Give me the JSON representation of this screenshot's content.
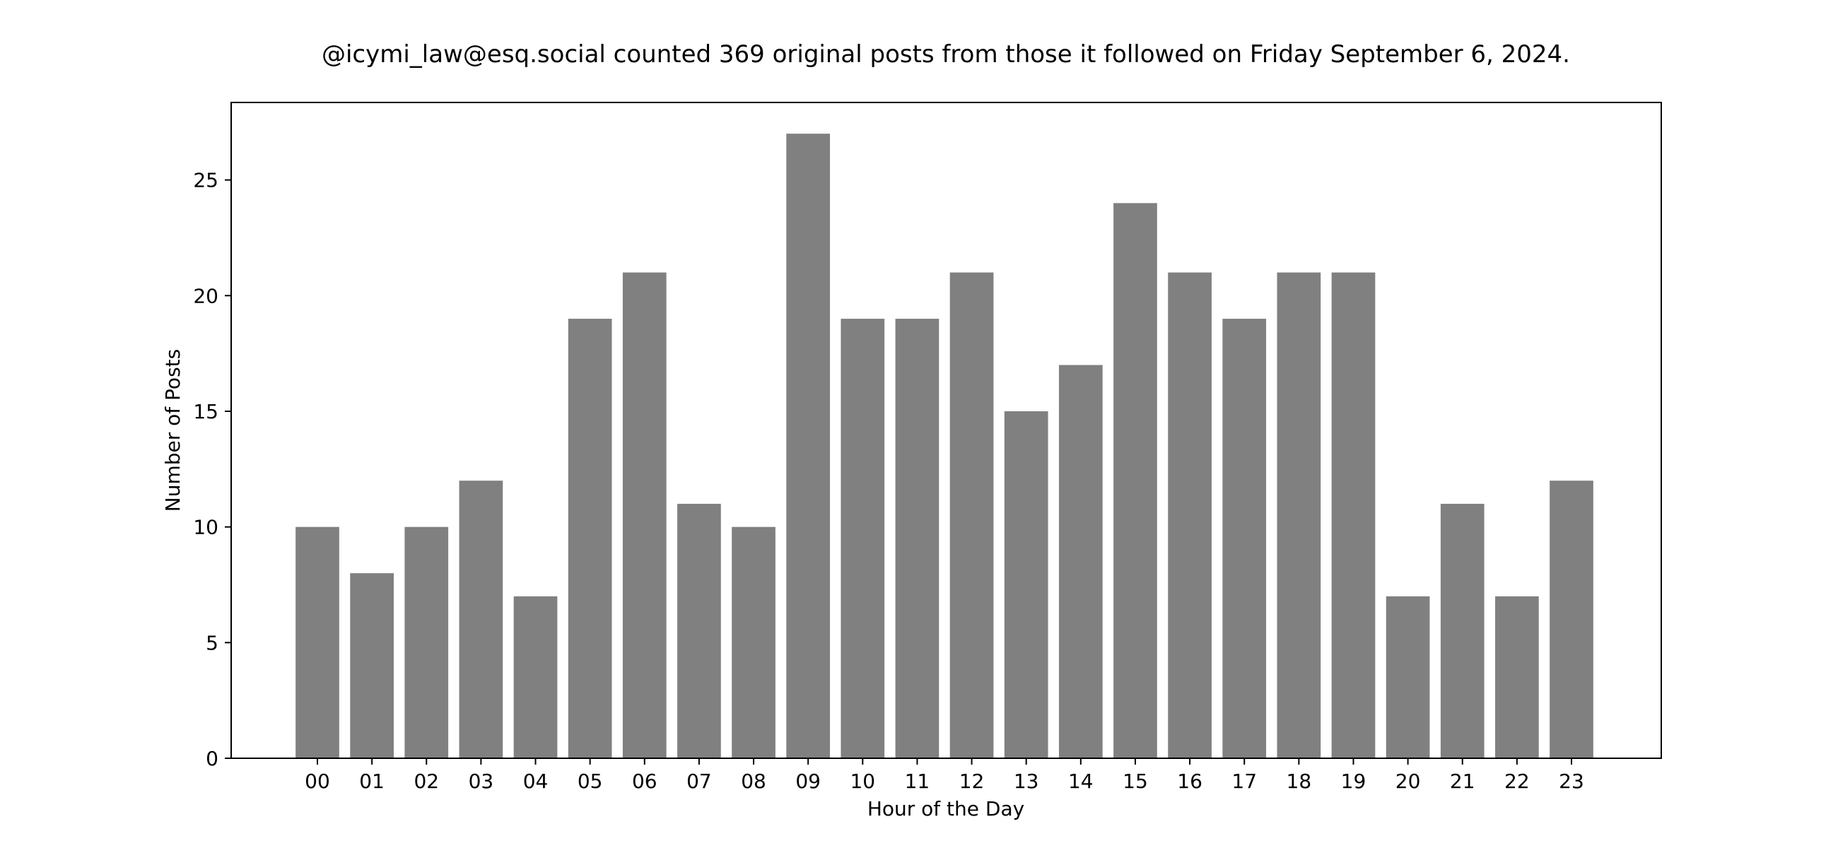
{
  "chart_data": {
    "type": "bar",
    "title": "@icymi_law@esq.social counted 369 original posts from those it followed on Friday September 6, 2024.",
    "xlabel": "Hour of the Day",
    "ylabel": "Number of Posts",
    "categories": [
      "00",
      "01",
      "02",
      "03",
      "04",
      "05",
      "06",
      "07",
      "08",
      "09",
      "10",
      "11",
      "12",
      "13",
      "14",
      "15",
      "16",
      "17",
      "18",
      "19",
      "20",
      "21",
      "22",
      "23"
    ],
    "values": [
      10,
      8,
      10,
      12,
      7,
      19,
      21,
      11,
      10,
      27,
      19,
      19,
      21,
      15,
      17,
      24,
      21,
      19,
      21,
      21,
      7,
      11,
      7,
      12
    ],
    "ylim": [
      0,
      28.35
    ],
    "yticks": [
      0,
      5,
      10,
      15,
      20,
      25
    ],
    "bar_color": "#808080",
    "grid": false,
    "legend": "none"
  }
}
